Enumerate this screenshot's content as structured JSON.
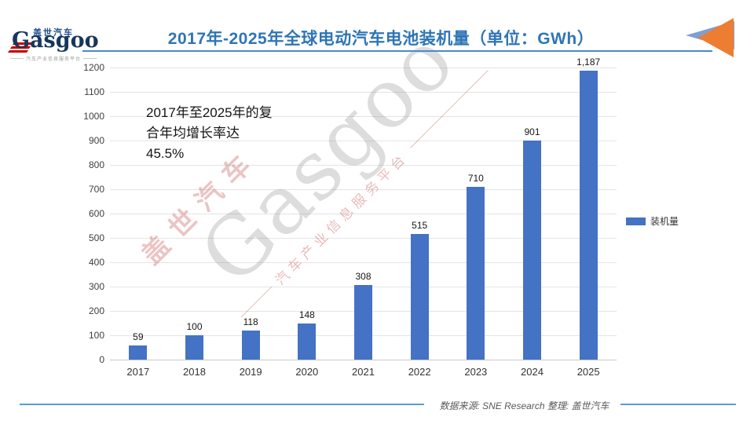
{
  "header": {
    "logo": {
      "brand_cn": "盖世汽车",
      "brand_en": "Gasgoo",
      "tagline": "汽车产业信息服务平台"
    },
    "title": "2017年-2025年全球电动汽车电池装机量（单位：GWh）"
  },
  "annotation": "2017年至2025年的复\n合年均增长率达\n45.5%",
  "legend": {
    "label": "装机量",
    "color": "#4472C4"
  },
  "footer": {
    "source": "数据来源: SNE Research 整理: 盖世汽车"
  },
  "colors": {
    "bar": "#4472C4",
    "title_blue": "#2E75B6",
    "accent_line_blue": "#5B9BD5",
    "grid_gray": "#E4E4E4",
    "brand_red": "#C00000",
    "brand_navy": "#17365D",
    "corner_blue": "#7F9FD1",
    "corner_orange": "#ED7D31"
  },
  "chart_data": {
    "type": "bar",
    "title": "2017年-2025年全球电动汽车电池装机量（单位：GWh）",
    "categories": [
      "2017",
      "2018",
      "2019",
      "2020",
      "2021",
      "2022",
      "2023",
      "2024",
      "2025"
    ],
    "series": [
      {
        "name": "装机量",
        "values": [
          59,
          100,
          118,
          148,
          308,
          515,
          710,
          901,
          1187
        ]
      }
    ],
    "value_labels": [
      "59",
      "100",
      "118",
      "148",
      "308",
      "515",
      "710",
      "901",
      "1,187"
    ],
    "unit": "GWh",
    "xlabel": "",
    "ylabel": "",
    "ylim": [
      0,
      1200
    ],
    "ytick_interval": 100,
    "grid": true,
    "legend_position": "right",
    "annotation": "2017年至2025年的复合年均增长率达45.5%",
    "source": "SNE Research"
  }
}
